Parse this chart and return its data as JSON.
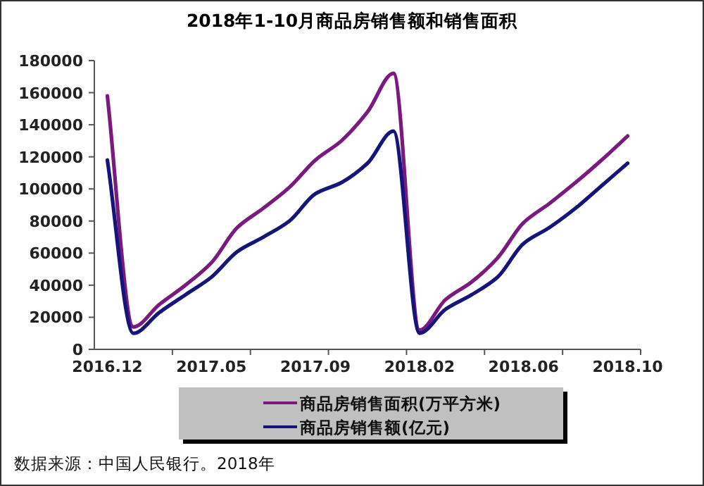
{
  "chart_data": {
    "type": "line",
    "title": "2018年1-10月商品房销售额和销售面积",
    "categories": [
      "2016.12",
      null,
      null,
      null,
      "2017.05",
      null,
      null,
      null,
      "2017.09",
      null,
      null,
      null,
      "2018.02",
      null,
      null,
      null,
      "2018.06",
      null,
      null,
      null,
      "2018.10"
    ],
    "series": [
      {
        "name": "商品房销售面积(万平方米)",
        "color": "#7b1a7e",
        "values": [
          158000,
          14000,
          28000,
          40000,
          54000,
          76000,
          88000,
          101000,
          118000,
          130000,
          148000,
          172000,
          12000,
          31000,
          42000,
          57000,
          79000,
          91000,
          104000,
          118000,
          133000
        ]
      },
      {
        "name": "商品房销售额(亿元)",
        "color": "#14147a",
        "values": [
          118000,
          10000,
          23000,
          34000,
          45000,
          61000,
          70000,
          80000,
          97000,
          104000,
          116000,
          136000,
          10000,
          25000,
          34000,
          45000,
          66000,
          76000,
          88000,
          102000,
          116000
        ]
      }
    ],
    "ylim": [
      0,
      180000
    ],
    "yticks": [
      0,
      20000,
      40000,
      60000,
      80000,
      100000,
      120000,
      140000,
      160000,
      180000
    ],
    "legend": "bottom",
    "marker": "none",
    "line_style": "solid",
    "annotations": [
      "数据来源：中国人民银行。2018年"
    ]
  }
}
